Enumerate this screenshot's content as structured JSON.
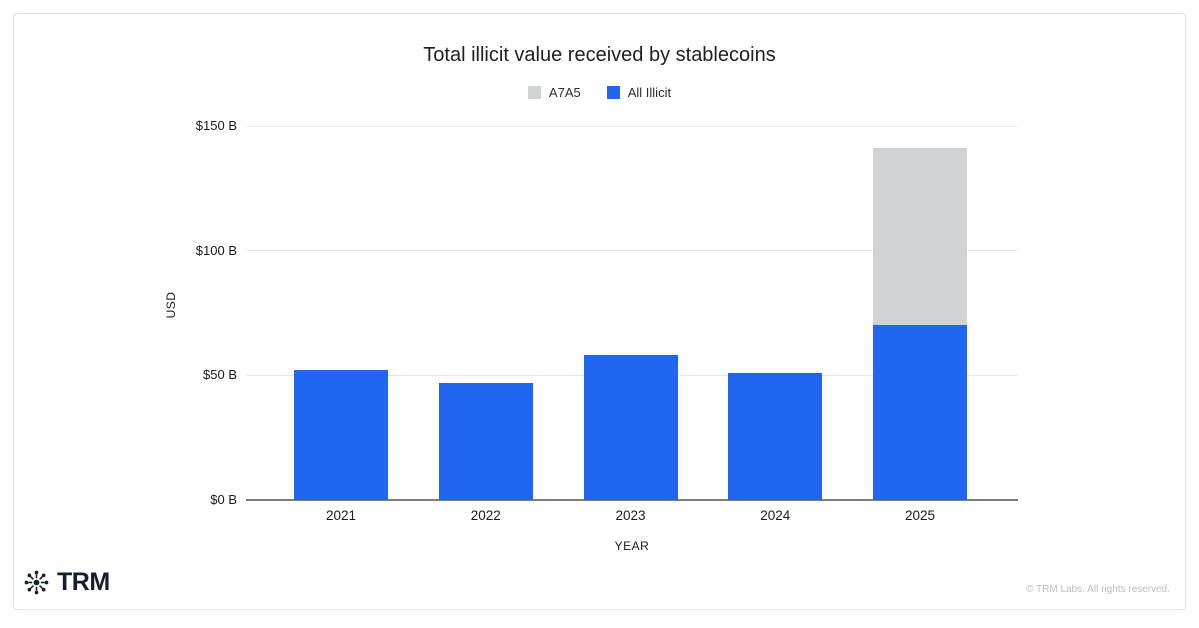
{
  "chart_data": {
    "type": "bar",
    "stacked": true,
    "title": "Total illicit value received by stablecoins",
    "categories": [
      "2021",
      "2022",
      "2023",
      "2024",
      "2025"
    ],
    "series": [
      {
        "name": "A7A5",
        "color": "#D1D2D4",
        "values": [
          0,
          0,
          0,
          0,
          71
        ]
      },
      {
        "name": "All Illicit",
        "color": "#2166F0",
        "values": [
          52,
          47,
          58,
          51,
          70
        ]
      }
    ],
    "xlabel": "YEAR",
    "ylabel": "USD",
    "ylim": [
      0,
      150
    ],
    "yticks": [
      {
        "label": "$0 B",
        "value": 0
      },
      {
        "label": "$50 B",
        "value": 50
      },
      {
        "label": "$100 B",
        "value": 100
      },
      {
        "label": "$150 B",
        "value": 150
      }
    ],
    "legend_position": "top",
    "grid": true
  },
  "footer": {
    "brand": "TRM",
    "copyright": "© TRM Labs. All rights reserved."
  },
  "icons": {
    "logo": "starburst-icon"
  },
  "colors": {
    "a7a5": "#D1D2D4",
    "all_illicit": "#2166F0",
    "gridline": "#E8E8E8",
    "axis_line": "#7D7D7D",
    "logo": "#15202F"
  }
}
